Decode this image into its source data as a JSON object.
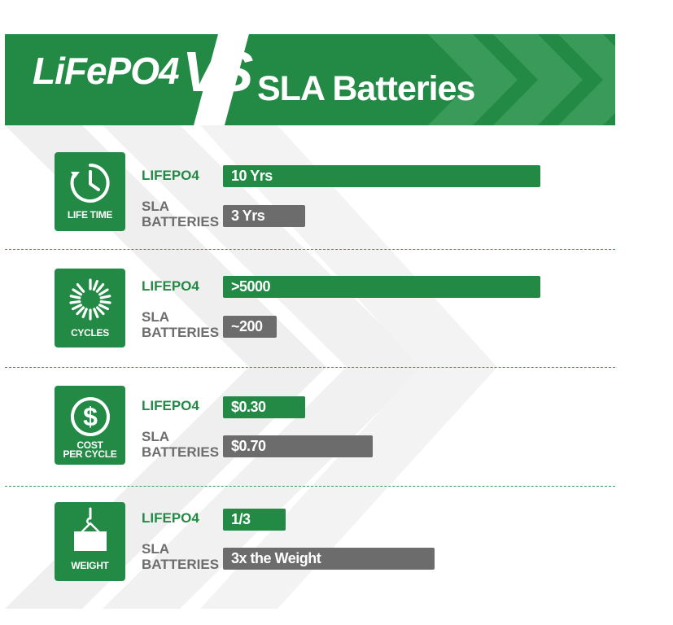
{
  "header": {
    "title_left": "LiFePO4",
    "title_vs": "VS",
    "title_right": "SLA Batteries"
  },
  "colors": {
    "brand_green": "#238a45",
    "bar_grey": "#6c6c6c",
    "sla_label_grey": "#6d6d6d"
  },
  "rows": [
    {
      "icon": "clock-icon",
      "tile_label": "LIFE TIME",
      "lifepo4_label": "LIFEPO4",
      "lifepo4_value": "10 Yrs",
      "sla_label_line1": "SLA",
      "sla_label_line2": "BATTERIES",
      "sla_value": "3 Yrs"
    },
    {
      "icon": "cycles-icon",
      "tile_label": "CYCLES",
      "lifepo4_label": "LIFEPO4",
      "lifepo4_value": ">5000",
      "sla_label_line1": "SLA",
      "sla_label_line2": "BATTERIES",
      "sla_value": "~200"
    },
    {
      "icon": "dollar-icon",
      "tile_label_line1": "COST",
      "tile_label_line2": "PER CYCLE",
      "lifepo4_label": "LIFEPO4",
      "lifepo4_value": "$0.30",
      "sla_label_line1": "SLA",
      "sla_label_line2": "BATTERIES",
      "sla_value": "$0.70"
    },
    {
      "icon": "weight-icon",
      "tile_label": "WEIGHT",
      "lifepo4_label": "LIFEPO4",
      "lifepo4_value": "1/3",
      "sla_label_line1": "SLA",
      "sla_label_line2": "BATTERIES",
      "sla_value": "3x the Weight"
    }
  ]
}
